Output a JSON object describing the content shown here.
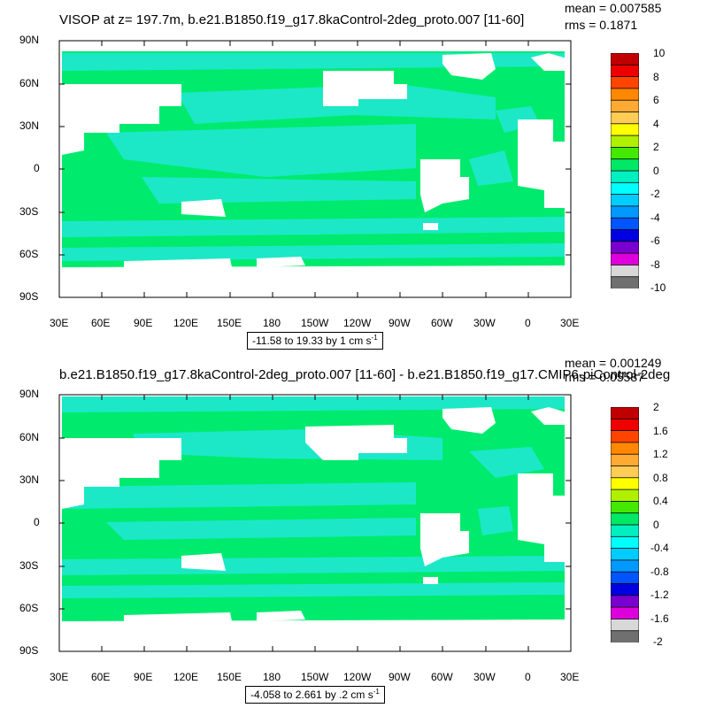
{
  "panels": [
    {
      "title": "VISOP at z= 197.7m, b.e21.B1850.f19_g17.8kaControl-2deg_proto.007 [11-60]",
      "mean": "mean = 0.007585",
      "rms": "rms = 0.1871",
      "range": "-11.58 to 19.33 by 1 cm s",
      "range_unit_sup": "-1",
      "lat_labels": [
        "90N",
        "60N",
        "30N",
        "0",
        "30S",
        "60S",
        "90S"
      ],
      "lon_labels": [
        "30E",
        "60E",
        "90E",
        "120E",
        "150E",
        "180",
        "150W",
        "120W",
        "90W",
        "60W",
        "30W",
        "0",
        "30E"
      ],
      "colorbar_labels": [
        "10",
        "8",
        "6",
        "4",
        "2",
        "0",
        "-2",
        "-4",
        "-6",
        "-8",
        "-10"
      ]
    },
    {
      "title": "b.e21.B1850.f19_g17.8kaControl-2deg_proto.007 [11-60] - b.e21.B1850.f19_g17.CMIP6-piControl-2deg",
      "mean": "mean = 0.001249",
      "rms": "rms = 0.05587",
      "range": "-4.058 to 2.661 by .2 cm s",
      "range_unit_sup": "-1",
      "lat_labels": [
        "90N",
        "60N",
        "30N",
        "0",
        "30S",
        "60S",
        "90S"
      ],
      "lon_labels": [
        "30E",
        "60E",
        "90E",
        "120E",
        "150E",
        "180",
        "150W",
        "120W",
        "90W",
        "60W",
        "30W",
        "0",
        "30E"
      ],
      "colorbar_labels": [
        "2",
        "1.6",
        "1.2",
        "0.8",
        "0.4",
        "0",
        "-0.4",
        "-0.8",
        "-1.2",
        "-1.6",
        "-2"
      ]
    }
  ],
  "colorbar_colors": [
    "#c00000",
    "#ee0000",
    "#ff4400",
    "#ff8800",
    "#ffaa33",
    "#ffcc55",
    "#ffff00",
    "#b0f000",
    "#44e800",
    "#00e866",
    "#00f0c0",
    "#00ffff",
    "#00ccff",
    "#0099ff",
    "#0055ff",
    "#0000e0",
    "#7a00d0",
    "#dd00dd",
    "#d8d8d8",
    "#707070"
  ],
  "map_colors": {
    "ocean_main": "#00eb6e",
    "ocean_band": "#1ce8c8",
    "land": "#ffffff",
    "frame": "#000000"
  }
}
